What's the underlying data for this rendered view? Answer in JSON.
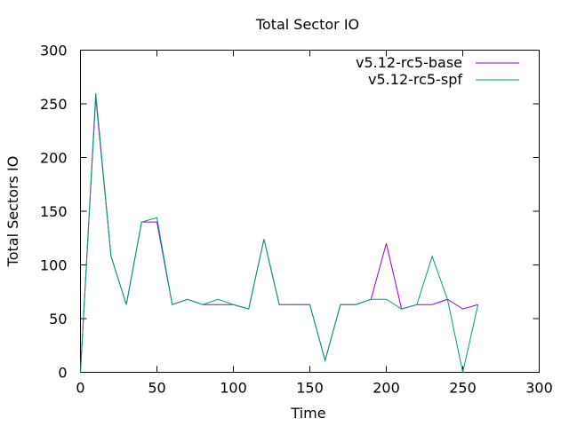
{
  "chart_data": {
    "type": "line",
    "title": "Total Sector IO",
    "xlabel": "Time",
    "ylabel": "Total Sectors IO",
    "xlim": [
      0,
      300
    ],
    "ylim": [
      0,
      300
    ],
    "xticks": [
      0,
      50,
      100,
      150,
      200,
      250,
      300
    ],
    "yticks": [
      0,
      50,
      100,
      150,
      200,
      250,
      300
    ],
    "grid": false,
    "legend_position": "top-right",
    "series": [
      {
        "name": "v5.12-rc5-base",
        "color": "#9400d3",
        "x": [
          0,
          10,
          20,
          30,
          40,
          50,
          60,
          70,
          80,
          90,
          100,
          110,
          120,
          130,
          140,
          150,
          160,
          170,
          180,
          190,
          200,
          210,
          220,
          230,
          240,
          250,
          260
        ],
        "y": [
          0,
          256,
          108,
          63,
          140,
          140,
          63,
          68,
          63,
          63,
          63,
          59,
          124,
          63,
          63,
          63,
          11,
          63,
          63,
          68,
          120,
          59,
          63,
          63,
          68,
          59,
          63
        ]
      },
      {
        "name": "v5.12-rc5-spf",
        "color": "#009e73",
        "x": [
          0,
          10,
          20,
          30,
          40,
          50,
          60,
          70,
          80,
          90,
          100,
          110,
          120,
          130,
          140,
          150,
          160,
          170,
          180,
          190,
          200,
          210,
          220,
          230,
          240,
          250,
          260
        ],
        "y": [
          0,
          260,
          108,
          63,
          140,
          144,
          63,
          68,
          63,
          68,
          63,
          59,
          124,
          63,
          63,
          63,
          11,
          63,
          63,
          68,
          68,
          59,
          63,
          108,
          68,
          0,
          63
        ]
      }
    ]
  }
}
